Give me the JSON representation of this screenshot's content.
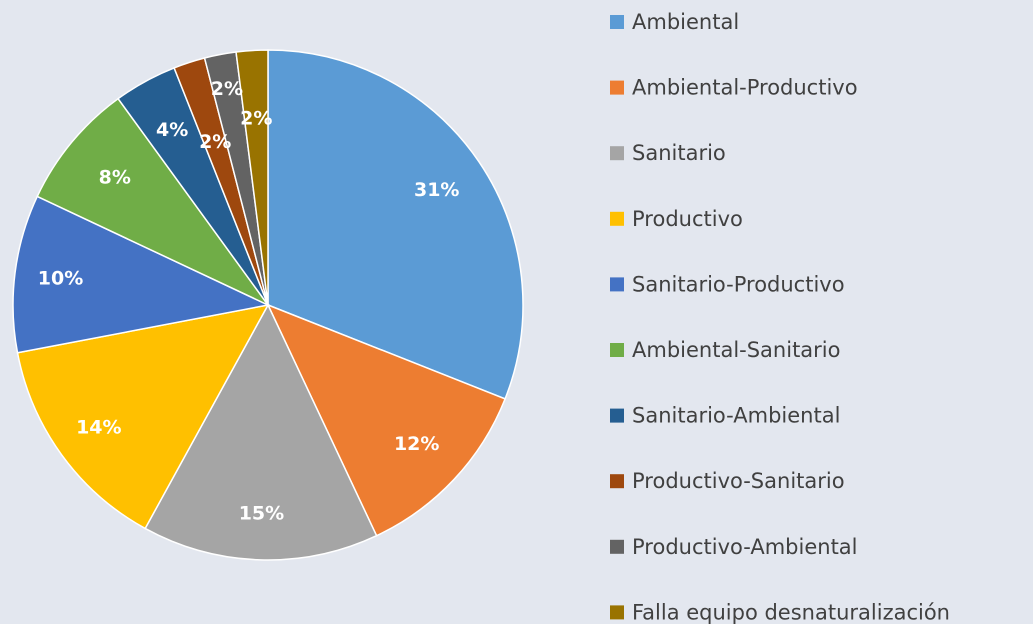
{
  "chart_data": {
    "type": "pie",
    "categories": [
      "Ambiental",
      "Ambiental-Productivo",
      "Sanitario",
      "Productivo",
      "Sanitario-Productivo",
      "Ambiental-Sanitario",
      "Sanitario-Ambiental",
      "Productivo-Sanitario",
      "Productivo-Ambiental",
      "Falla equipo desnaturalización"
    ],
    "values": [
      31,
      12,
      15,
      14,
      10,
      8,
      4,
      2,
      2,
      2
    ],
    "value_labels": [
      "31%",
      "12%",
      "15%",
      "14%",
      "10%",
      "8%",
      "4%",
      "2%",
      "2%",
      "2%"
    ],
    "colors": [
      "#5b9bd5",
      "#ed7d31",
      "#a5a5a5",
      "#ffc000",
      "#4472c4",
      "#70ad47",
      "#255e91",
      "#9e480e",
      "#636363",
      "#997300"
    ],
    "legend": "right"
  }
}
